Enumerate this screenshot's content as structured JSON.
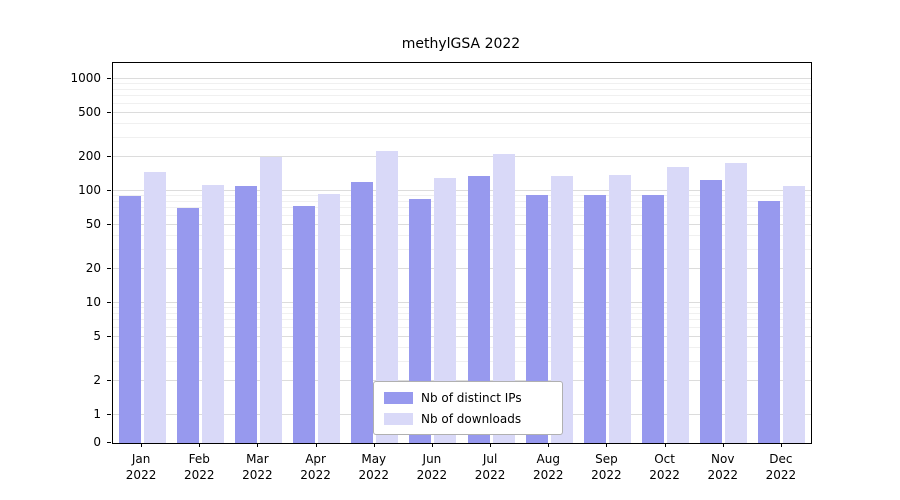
{
  "title": "methylGSA 2022",
  "year": "2022",
  "chart_data": {
    "type": "bar",
    "title": "methylGSA 2022",
    "categories": [
      "Jan 2022",
      "Feb 2022",
      "Mar 2022",
      "Apr 2022",
      "May 2022",
      "Jun 2022",
      "Jul 2022",
      "Aug 2022",
      "Sep 2022",
      "Oct 2022",
      "Nov 2022",
      "Dec 2022"
    ],
    "series": [
      {
        "name": "Nb of distinct IPs",
        "color": "#9799ee",
        "values": [
          90,
          70,
          110,
          73,
          120,
          85,
          137,
          93,
          92,
          93,
          126,
          82
        ]
      },
      {
        "name": "Nb of downloads",
        "color": "#d9d9f8",
        "values": [
          148,
          113,
          200,
          95,
          230,
          130,
          212,
          135,
          140,
          165,
          178,
          112
        ]
      }
    ],
    "xlabel": "",
    "ylabel": "",
    "yscale": "log",
    "yticks": [
      1000,
      500,
      200,
      100,
      50,
      20,
      10,
      5,
      2,
      1,
      0
    ],
    "ylim": [
      0,
      1400
    ],
    "grid": true,
    "legend_position": "bottom-center-inside"
  }
}
